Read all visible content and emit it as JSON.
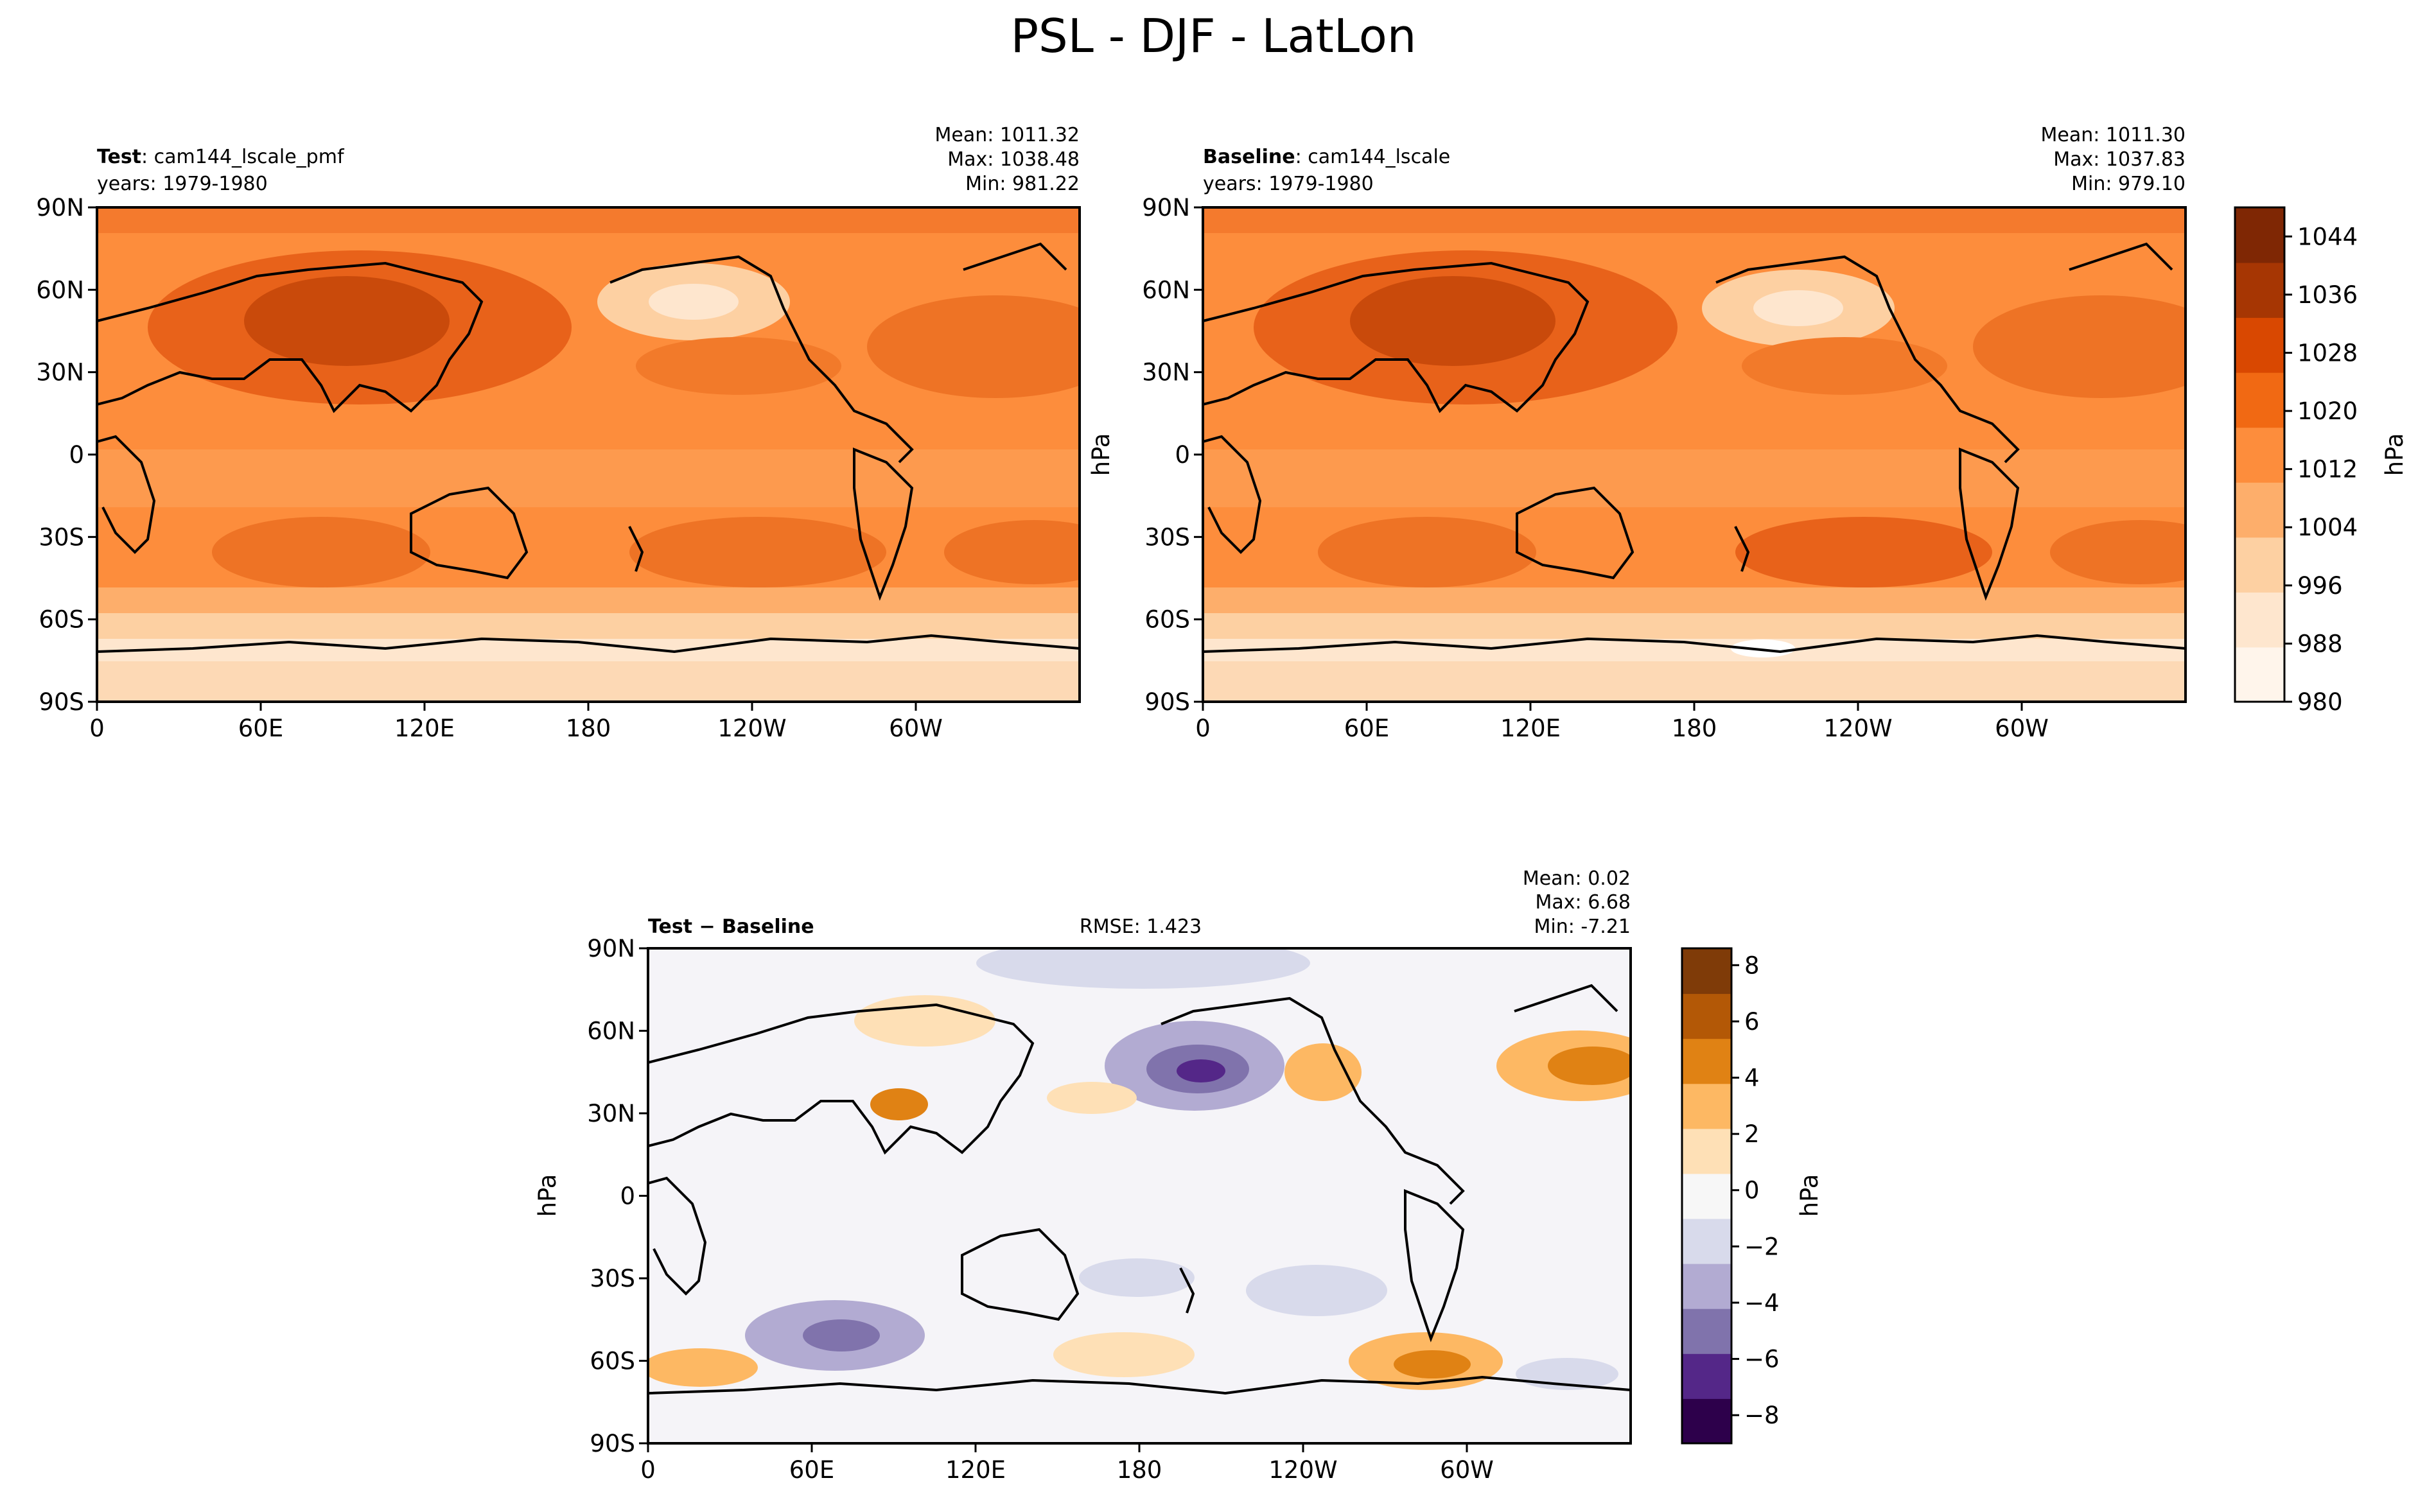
{
  "figure_title": "PSL - DJF - LatLon",
  "chart_data": [
    {
      "id": "test",
      "type": "heatmap",
      "title_bold": "Test",
      "title_rest": ": cam144_lscale_pmf",
      "subtitle": "years: 1979-1980",
      "stats": [
        "Mean: 1011.32",
        "Max: 1038.48",
        "Min: 981.22"
      ],
      "xticks": [
        "0",
        "60E",
        "120E",
        "180",
        "120W",
        "60W"
      ],
      "yticks": [
        "90N",
        "60N",
        "30N",
        "0",
        "30S",
        "60S",
        "90S"
      ],
      "xlim": [
        0,
        360
      ],
      "ylim": [
        -90,
        90
      ],
      "units": "hPa",
      "colormap": "Oranges",
      "mean": 1011.32,
      "max": 1038.48,
      "min": 981.22
    },
    {
      "id": "baseline",
      "type": "heatmap",
      "title_bold": "Baseline",
      "title_rest": ": cam144_lscale",
      "subtitle": "years: 1979-1980",
      "stats": [
        "Mean: 1011.30",
        "Max: 1037.83",
        "Min: 979.10"
      ],
      "xticks": [
        "0",
        "60E",
        "120E",
        "180",
        "120W",
        "60W"
      ],
      "yticks": [
        "90N",
        "60N",
        "30N",
        "0",
        "30S",
        "60S",
        "90S"
      ],
      "xlim": [
        0,
        360
      ],
      "ylim": [
        -90,
        90
      ],
      "units": "hPa",
      "colormap": "Oranges",
      "mean": 1011.3,
      "max": 1037.83,
      "min": 979.1,
      "colorbar": {
        "label": "hPa",
        "ticks": [
          "1044",
          "1036",
          "1028",
          "1020",
          "1012",
          "1004",
          "996",
          "988",
          "980"
        ],
        "tick_values": [
          1044,
          1036,
          1028,
          1020,
          1012,
          1004,
          996,
          988,
          980
        ],
        "range": [
          980,
          1048
        ],
        "colors": [
          "#fff5eb",
          "#fee6ce",
          "#fdd0a2",
          "#fdae6b",
          "#fd8d3c",
          "#f16913",
          "#d94801",
          "#a63603",
          "#7f2704"
        ]
      }
    },
    {
      "id": "diff",
      "type": "heatmap",
      "title_bold": "Test − Baseline",
      "center_label": "RMSE: 1.423",
      "stats": [
        "Mean:  0.02",
        "Max:  6.68",
        "Min: -7.21"
      ],
      "xticks": [
        "0",
        "60E",
        "120E",
        "180",
        "120W",
        "60W"
      ],
      "yticks": [
        "90N",
        "60N",
        "30N",
        "0",
        "30S",
        "60S",
        "90S"
      ],
      "xlim": [
        0,
        360
      ],
      "ylim": [
        -90,
        90
      ],
      "units": "hPa",
      "colormap": "PuOr_r",
      "rmse": 1.423,
      "mean": 0.02,
      "max": 6.68,
      "min": -7.21,
      "colorbar": {
        "label": "hPa",
        "ticks": [
          "8",
          "6",
          "4",
          "2",
          "0",
          "−2",
          "−4",
          "−6",
          "−8"
        ],
        "tick_values": [
          8,
          6,
          4,
          2,
          0,
          -2,
          -4,
          -6,
          -8
        ],
        "range": [
          -9,
          8.6
        ],
        "colors": [
          "#2d004b",
          "#542788",
          "#8073ac",
          "#b2abd2",
          "#d8daeb",
          "#f7f7f7",
          "#fee0b6",
          "#fdb863",
          "#e08214",
          "#b35806",
          "#7f3b08"
        ]
      }
    }
  ]
}
